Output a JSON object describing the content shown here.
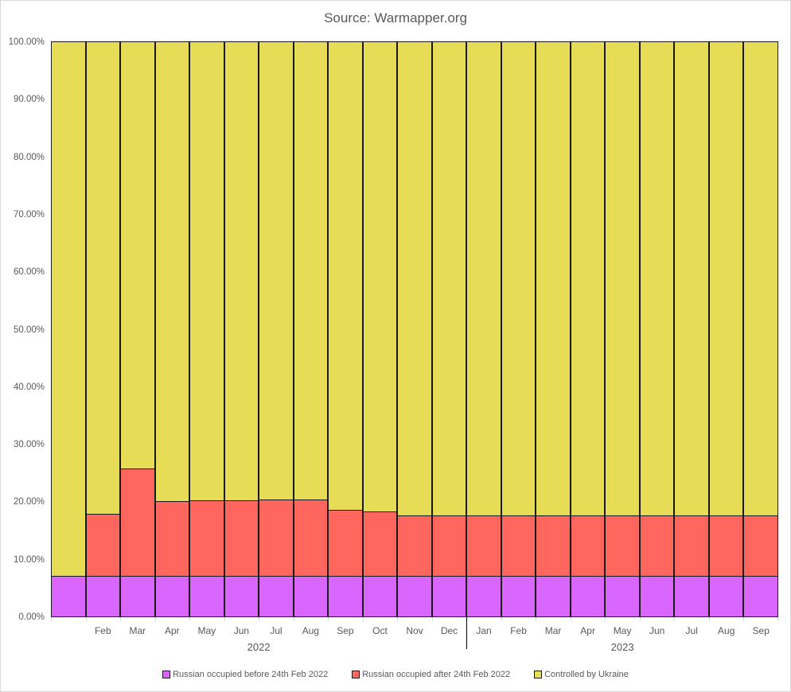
{
  "chart_data": {
    "type": "bar",
    "stacked": true,
    "normalized_100_percent": true,
    "title": "Source: Warmapper.org",
    "xlabel": "",
    "ylabel": "",
    "ylim": [
      0,
      100
    ],
    "yticks": [
      "0.00%",
      "10.00%",
      "20.00%",
      "30.00%",
      "40.00%",
      "50.00%",
      "60.00%",
      "70.00%",
      "80.00%",
      "90.00%",
      "100.00%"
    ],
    "categories": [
      "",
      "Feb",
      "Mar",
      "Apr",
      "May",
      "Jun",
      "Jul",
      "Aug",
      "Sep",
      "Oct",
      "Nov",
      "Dec",
      "Jan",
      "Feb",
      "Mar",
      "Apr",
      "May",
      "Jun",
      "Jul",
      "Aug",
      "Sep"
    ],
    "category_groups": [
      {
        "label": "2022",
        "start": 0,
        "end": 11
      },
      {
        "label": "2023",
        "start": 12,
        "end": 20
      }
    ],
    "series": [
      {
        "name": "Russian occupied before 24th Feb 2022",
        "color": "#D966FF",
        "values": [
          7.0,
          7.0,
          7.0,
          7.0,
          7.0,
          7.0,
          7.0,
          7.0,
          7.0,
          7.0,
          7.0,
          7.0,
          7.0,
          7.0,
          7.0,
          7.0,
          7.0,
          7.0,
          7.0,
          7.0,
          7.0
        ]
      },
      {
        "name": "Russian occupied after 24th Feb 2022",
        "color": "#FF665E",
        "values": [
          0.0,
          10.8,
          18.7,
          13.1,
          13.2,
          13.2,
          13.3,
          13.4,
          11.6,
          11.3,
          10.5,
          10.5,
          10.5,
          10.5,
          10.5,
          10.5,
          10.5,
          10.5,
          10.5,
          10.5,
          10.5
        ]
      },
      {
        "name": "Controlled by Ukraine",
        "color": "#E6DC55",
        "values": [
          93.0,
          82.2,
          74.3,
          79.9,
          79.8,
          79.8,
          79.7,
          79.6,
          81.4,
          81.7,
          82.5,
          82.5,
          82.5,
          82.5,
          82.5,
          82.5,
          82.5,
          82.5,
          82.5,
          82.5,
          82.5
        ]
      }
    ],
    "grid": false,
    "legend_position": "bottom"
  }
}
